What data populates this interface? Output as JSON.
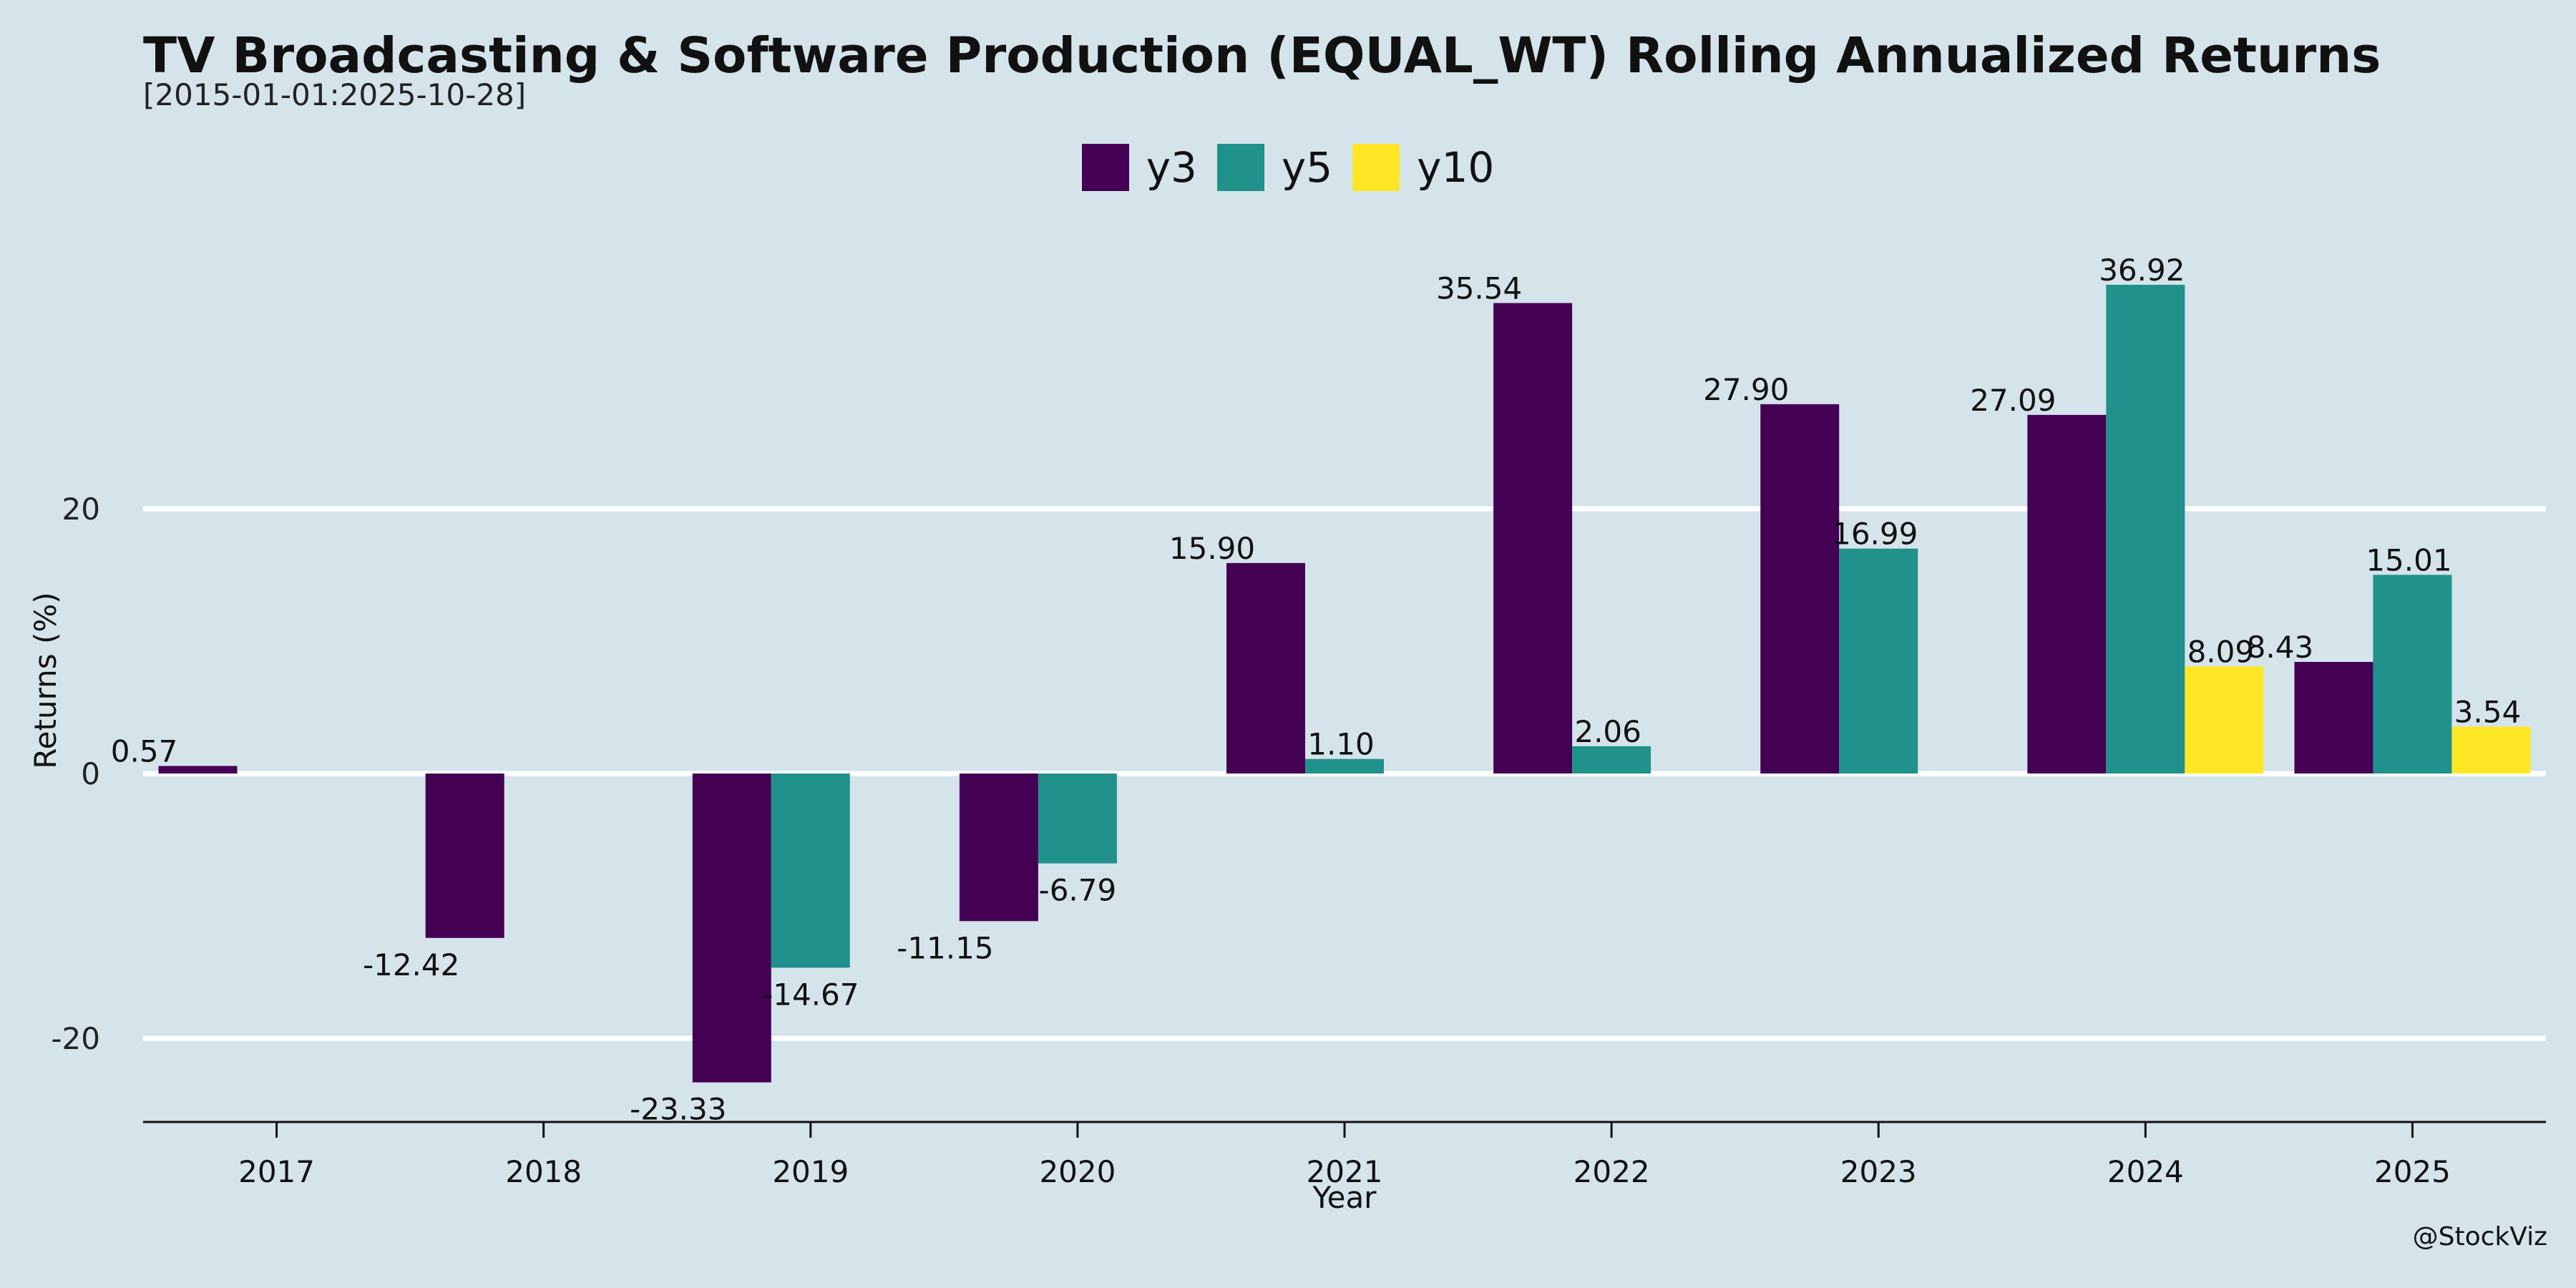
{
  "chart_data": {
    "type": "bar",
    "title": "TV Broadcasting & Software Production (EQUAL_WT) Rolling Annualized Returns",
    "subtitle": "[2015-01-01:2025-10-28]",
    "xlabel": "Year",
    "ylabel": "Returns (%)",
    "categories": [
      "2017",
      "2018",
      "2019",
      "2020",
      "2021",
      "2022",
      "2023",
      "2024",
      "2025"
    ],
    "yticks": [
      -20,
      0,
      20
    ],
    "ylim": [
      -26.5,
      42.5
    ],
    "grid": true,
    "legend_position": "top-center",
    "series": [
      {
        "name": "y3",
        "color": "#440154",
        "values": [
          0.57,
          -12.42,
          -23.33,
          -11.15,
          15.9,
          35.54,
          27.9,
          27.09,
          8.43
        ]
      },
      {
        "name": "y5",
        "color": "#21918c",
        "values": [
          null,
          null,
          -14.67,
          -6.79,
          1.1,
          2.06,
          16.99,
          36.92,
          15.01
        ]
      },
      {
        "name": "y10",
        "color": "#fde725",
        "values": [
          null,
          null,
          null,
          null,
          null,
          null,
          null,
          8.09,
          3.54
        ]
      }
    ],
    "credit": "@StockViz"
  }
}
